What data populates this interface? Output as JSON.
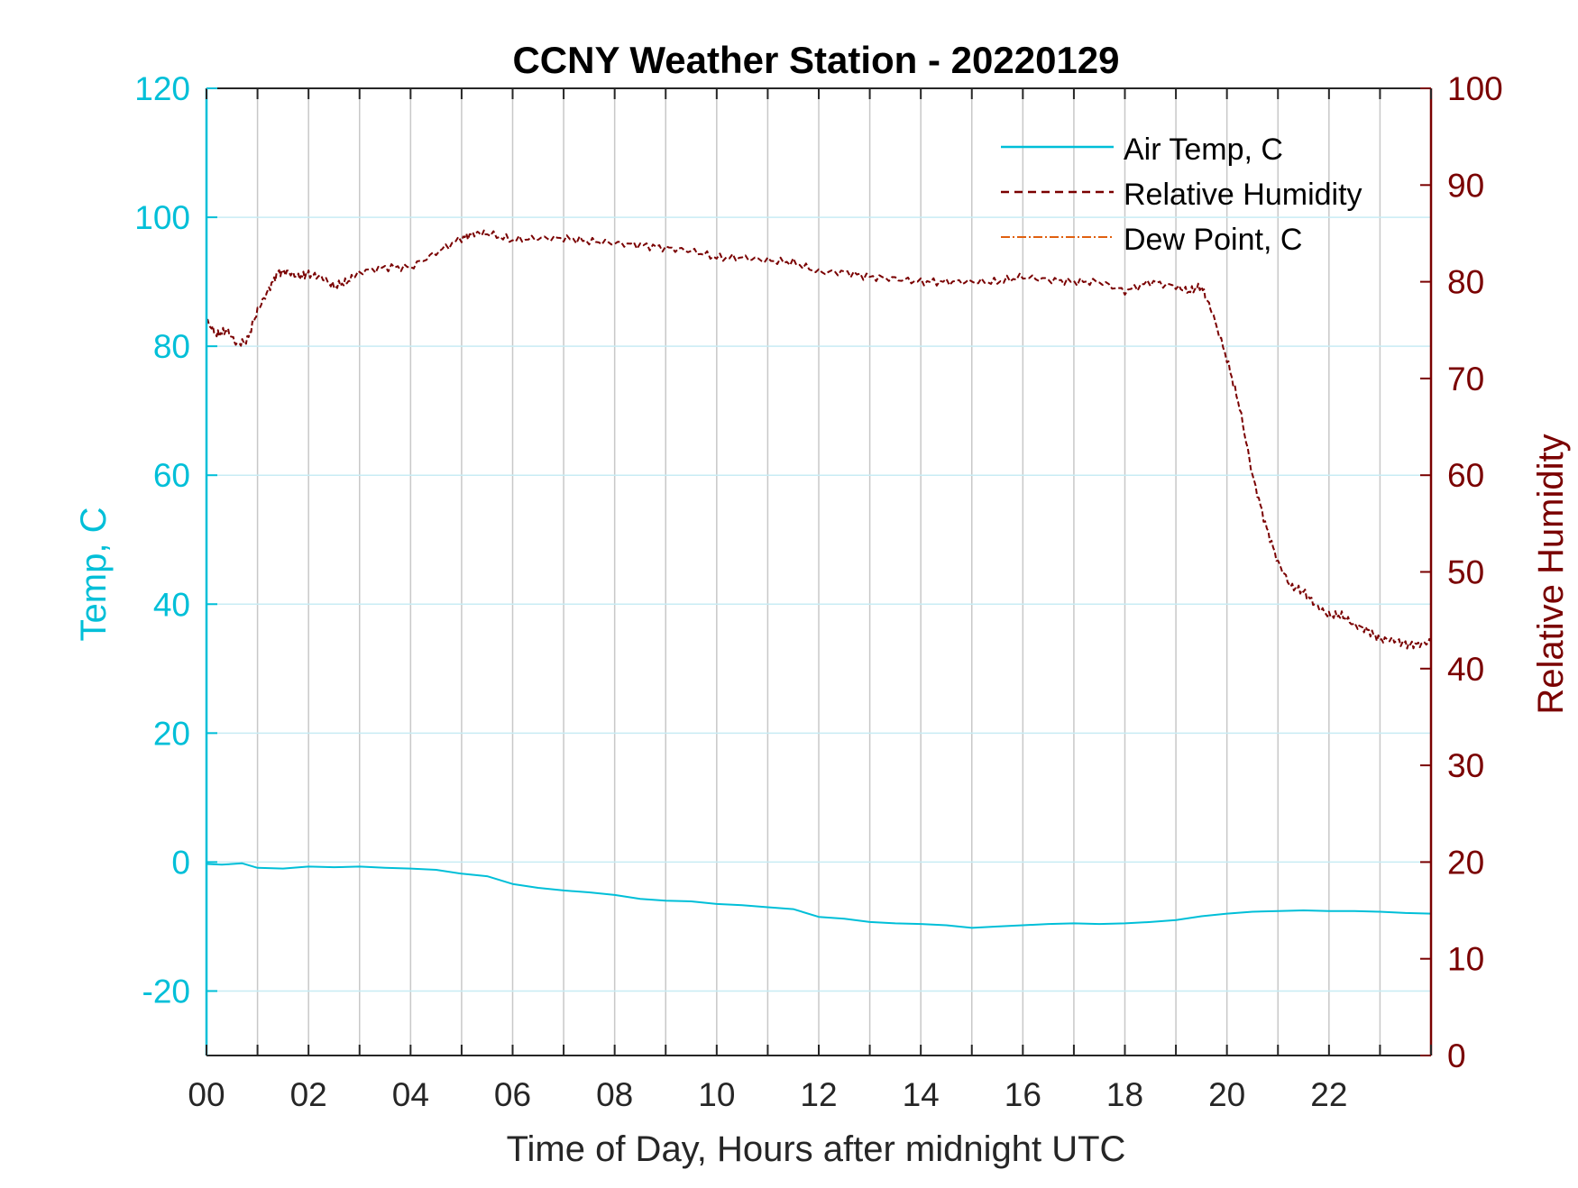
{
  "colors": {
    "temp": "#00bfd8",
    "rh": "#7a0000",
    "dew": "#e06010",
    "axis": "#262626",
    "grid_h": "#c8ecf4",
    "grid_v": "#c8c8c8"
  },
  "chart_data": {
    "type": "line",
    "title": "CCNY Weather Station - 20220129",
    "xlabel": "Time of Day, Hours after midnight UTC",
    "ylabel_left": "Temp, C",
    "ylabel_right": "Relative Humidity",
    "xlim": [
      0,
      24
    ],
    "ylim_left": [
      -30,
      120
    ],
    "ylim_right": [
      0,
      100
    ],
    "x_tick_values": [
      0,
      2,
      4,
      6,
      8,
      10,
      12,
      14,
      16,
      18,
      20,
      22
    ],
    "x_tick_labels": [
      "00",
      "02",
      "04",
      "06",
      "08",
      "10",
      "12",
      "14",
      "16",
      "18",
      "20",
      "22"
    ],
    "y_left_tick_values": [
      -20,
      0,
      20,
      40,
      60,
      80,
      100,
      120
    ],
    "y_left_tick_labels": [
      "-20",
      "0",
      "20",
      "40",
      "60",
      "80",
      "100",
      "120"
    ],
    "y_right_tick_values": [
      0,
      10,
      20,
      30,
      40,
      50,
      60,
      70,
      80,
      90,
      100
    ],
    "y_right_tick_labels": [
      "0",
      "10",
      "20",
      "30",
      "40",
      "50",
      "60",
      "70",
      "80",
      "90",
      "100"
    ],
    "grid": {
      "vertical_every_hours": 1,
      "horizontal_at_left_ticks": true
    },
    "legend_position": "top-right",
    "legend": [
      "Air Temp, C",
      "Relative Humidity",
      "Dew Point, C"
    ],
    "series": [
      {
        "name": "Air Temp, C",
        "axis": "left",
        "style": "solid",
        "x": [
          0,
          0.3,
          0.7,
          1,
          1.5,
          2,
          2.5,
          3,
          3.5,
          4,
          4.5,
          5,
          5.5,
          6,
          6.5,
          7,
          7.5,
          8,
          8.5,
          9,
          9.5,
          10,
          10.5,
          11,
          11.5,
          12,
          12.5,
          13,
          13.5,
          14,
          14.5,
          15,
          15.5,
          16,
          16.5,
          17,
          17.5,
          18,
          18.5,
          19,
          19.5,
          20,
          20.5,
          21,
          21.5,
          22,
          22.5,
          23,
          23.5,
          24
        ],
        "y": [
          -0.3,
          -0.4,
          -0.2,
          -0.9,
          -1.0,
          -0.7,
          -0.8,
          -0.7,
          -0.9,
          -1.0,
          -1.2,
          -1.8,
          -2.2,
          -3.4,
          -4.0,
          -4.4,
          -4.7,
          -5.1,
          -5.7,
          -6.0,
          -6.1,
          -6.5,
          -6.7,
          -7.0,
          -7.3,
          -8.5,
          -8.8,
          -9.3,
          -9.5,
          -9.6,
          -9.8,
          -10.2,
          -10.0,
          -9.8,
          -9.6,
          -9.5,
          -9.6,
          -9.5,
          -9.3,
          -9.0,
          -8.4,
          -8.0,
          -7.7,
          -7.6,
          -7.5,
          -7.6,
          -7.6,
          -7.7,
          -7.9,
          -8.0
        ]
      },
      {
        "name": "Relative Humidity",
        "axis": "right",
        "style": "dashed",
        "x": [
          0,
          0.2,
          0.4,
          0.6,
          0.8,
          1,
          1.2,
          1.4,
          1.6,
          1.8,
          2,
          2.25,
          2.5,
          2.75,
          3,
          3.5,
          4,
          4.5,
          5,
          5.25,
          5.5,
          6,
          6.5,
          7,
          7.5,
          8,
          8.5,
          9,
          9.5,
          10,
          10.5,
          11,
          11.5,
          12,
          12.5,
          13,
          13.5,
          14,
          14.5,
          15,
          15.5,
          16,
          16.5,
          17,
          17.5,
          18,
          18.5,
          19,
          19.25,
          19.5,
          19.7,
          20,
          20.25,
          20.5,
          20.75,
          21,
          21.25,
          21.5,
          21.75,
          22,
          22.25,
          22.5,
          22.75,
          23,
          23.25,
          23.5,
          23.75,
          24
        ],
        "y": [
          76,
          74.5,
          75,
          73.5,
          74,
          77,
          79,
          81,
          81,
          80.5,
          80.8,
          80.5,
          79.5,
          80,
          81,
          81.5,
          81.5,
          83,
          84.5,
          85,
          85,
          84.3,
          84.5,
          84.5,
          84.2,
          84,
          83.8,
          83.5,
          83.2,
          82.5,
          82.5,
          82.2,
          82,
          81,
          81,
          80.5,
          80.3,
          80,
          80,
          80,
          80,
          80.5,
          80.2,
          80,
          80,
          79,
          80,
          79.5,
          79,
          79.5,
          77,
          72,
          67,
          60,
          55,
          51,
          48.5,
          48,
          46.5,
          45.5,
          45.5,
          44.5,
          44,
          43,
          43,
          42.5,
          42.5,
          42.8
        ]
      },
      {
        "name": "Dew Point, C",
        "axis": "left",
        "style": "dash-dot",
        "x": [],
        "y": []
      }
    ]
  }
}
